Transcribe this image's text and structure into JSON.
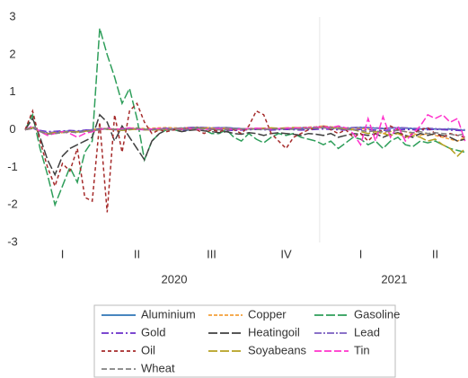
{
  "chart_data": {
    "type": "line",
    "categories": [
      null,
      null,
      null,
      null,
      null,
      "I",
      null,
      null,
      null,
      null,
      null,
      null,
      null,
      null,
      null,
      "II",
      null,
      null,
      null,
      null,
      null,
      null,
      null,
      null,
      null,
      "III",
      null,
      null,
      null,
      null,
      null,
      null,
      null,
      null,
      null,
      "IV",
      null,
      null,
      null,
      null,
      null,
      null,
      null,
      null,
      null,
      "I",
      null,
      null,
      null,
      null,
      null,
      null,
      null,
      null,
      null,
      "II",
      null,
      null,
      null,
      null
    ],
    "groups": [
      "2020",
      "2021"
    ],
    "ylim": [
      -3,
      3
    ],
    "yticks": [
      -3,
      -2,
      -1,
      0,
      1,
      2,
      3
    ],
    "series": [
      {
        "name": "Aluminium",
        "color": "#2e75b6",
        "dash": "none",
        "values": [
          0,
          0.05,
          -0.05,
          -0.1,
          -0.08,
          -0.05,
          -0.03,
          -0.05,
          -0.02,
          0,
          0.03,
          0.02,
          0,
          0.02,
          0.03,
          0.02,
          0,
          0.01,
          0.02,
          0.03,
          0.02,
          0.04,
          0.05,
          0.06,
          0.05,
          0.04,
          0.05,
          0.06,
          0.04,
          0.03,
          0.02,
          0.03,
          0.02,
          0.01,
          0.02,
          0.03,
          0.02,
          0.03,
          0.04,
          0.05,
          0.06,
          0.05,
          0.04,
          0.03,
          0.05,
          0.06,
          0.05,
          0.04,
          0.03,
          0.04,
          0.05,
          0.04,
          0.03,
          0.02,
          0.03,
          0.02,
          0.01,
          0.02,
          0,
          -0.02
        ]
      },
      {
        "name": "Copper",
        "color": "#f4a13a",
        "dash": "4,2",
        "values": [
          0,
          0.06,
          -0.04,
          -0.12,
          -0.1,
          -0.08,
          -0.05,
          -0.06,
          -0.03,
          0,
          0.04,
          0.03,
          0.02,
          0.03,
          0.04,
          0.05,
          0.03,
          0.04,
          0.05,
          0.06,
          0.05,
          0.04,
          0.06,
          0.07,
          0.06,
          0.05,
          0.04,
          0.05,
          0.03,
          0.02,
          0.03,
          0.04,
          0.03,
          0.02,
          0.03,
          0.04,
          0.05,
          0.06,
          0.07,
          0.08,
          0.1,
          0.08,
          0.06,
          0.05,
          0.04,
          0.03,
          0.02,
          -0.05,
          -0.1,
          -0.05,
          0,
          -0.05,
          -0.1,
          -0.15,
          -0.1,
          -0.15,
          -0.2,
          -0.25,
          -0.3,
          -0.2
        ]
      },
      {
        "name": "Gasoline",
        "color": "#2e9e5a",
        "dash": "10,3",
        "values": [
          0,
          0.4,
          -0.5,
          -1.2,
          -2.0,
          -1.5,
          -1.0,
          -1.4,
          -0.6,
          -0.3,
          2.7,
          2.0,
          1.4,
          0.7,
          1.1,
          0.3,
          -0.8,
          -0.3,
          -0.1,
          0,
          0,
          -0.05,
          0,
          0.05,
          0,
          -0.1,
          -0.1,
          0,
          -0.2,
          -0.3,
          -0.1,
          -0.25,
          -0.35,
          -0.2,
          -0.1,
          -0.15,
          -0.1,
          -0.2,
          -0.25,
          -0.3,
          -0.4,
          -0.3,
          -0.5,
          -0.35,
          -0.2,
          -0.25,
          -0.4,
          -0.3,
          -0.5,
          -0.3,
          -0.2,
          -0.4,
          -0.45,
          -0.3,
          -0.35,
          -0.3,
          -0.4,
          -0.5,
          -0.55,
          -0.6
        ]
      },
      {
        "name": "Gold",
        "color": "#6a2fc9",
        "dash": "8,3,2,3",
        "values": [
          0,
          0.03,
          -0.02,
          -0.05,
          -0.04,
          -0.03,
          -0.02,
          -0.03,
          -0.01,
          0,
          0.02,
          0.01,
          0,
          0.01,
          0.02,
          0.01,
          0,
          -0.01,
          0,
          0.01,
          0,
          -0.01,
          0,
          0.01,
          0.02,
          0.01,
          0,
          -0.01,
          -0.02,
          -0.01,
          0,
          0.01,
          0,
          -0.01,
          0,
          0.01,
          0,
          -0.01,
          0,
          0.01,
          0.02,
          0.01,
          0,
          -0.01,
          0,
          0.01,
          0,
          -0.01,
          -0.02,
          -0.01,
          0,
          0.01,
          0,
          -0.01,
          0,
          0.01,
          0,
          -0.01,
          -0.02,
          -0.03
        ]
      },
      {
        "name": "Heatingoil",
        "color": "#404040",
        "dash": "10,3",
        "values": [
          0,
          0.3,
          -0.2,
          -0.8,
          -1.2,
          -0.7,
          -0.5,
          -0.4,
          -0.3,
          -0.2,
          0.4,
          0.2,
          -0.3,
          0.1,
          -0.2,
          -0.5,
          -0.8,
          -0.3,
          -0.1,
          0,
          0,
          -0.05,
          -0.02,
          0,
          -0.03,
          -0.05,
          -0.08,
          -0.05,
          -0.1,
          -0.12,
          -0.08,
          -0.1,
          -0.15,
          -0.1,
          -0.08,
          -0.1,
          -0.12,
          -0.15,
          -0.1,
          -0.12,
          -0.15,
          -0.1,
          -0.2,
          -0.15,
          -0.1,
          -0.12,
          -0.15,
          -0.1,
          -0.2,
          -0.12,
          -0.08,
          -0.15,
          -0.2,
          -0.1,
          -0.15,
          -0.1,
          -0.15,
          -0.2,
          -0.3,
          -0.25
        ]
      },
      {
        "name": "Lead",
        "color": "#7b5fc0",
        "dash": "8,2,2,2",
        "values": [
          0,
          0.04,
          -0.03,
          -0.08,
          -0.06,
          -0.05,
          -0.04,
          -0.05,
          -0.02,
          0,
          0.03,
          0.02,
          0.01,
          0.02,
          0.03,
          0.02,
          0.01,
          0.02,
          0.03,
          0.04,
          0.03,
          0.05,
          0.06,
          0.07,
          0.06,
          0.05,
          0.06,
          0.05,
          0.04,
          0.03,
          0.02,
          0.03,
          0.02,
          0.01,
          0.02,
          0.03,
          0.04,
          0.05,
          0.06,
          0.07,
          0.08,
          0.07,
          0.06,
          0.05,
          0.06,
          0.07,
          0.06,
          0.05,
          0.04,
          0.05,
          0.06,
          0.05,
          0.04,
          0.03,
          0.04,
          0.03,
          0.02,
          0.03,
          0.01,
          0
        ]
      },
      {
        "name": "Oil",
        "color": "#a52a2a",
        "dash": "4,3",
        "values": [
          0,
          0.5,
          -0.3,
          -1.0,
          -1.5,
          -0.9,
          -1.1,
          -0.5,
          -1.8,
          -1.9,
          0.2,
          -2.2,
          0.4,
          -0.6,
          0.5,
          0.7,
          0.2,
          -0.1,
          0,
          -0.05,
          0,
          0,
          0.05,
          0,
          -0.1,
          0,
          -0.05,
          0,
          0,
          -0.1,
          0.1,
          0.5,
          0.4,
          -0.1,
          -0.3,
          -0.5,
          -0.2,
          -0.1,
          0,
          0.05,
          0.1,
          0,
          -0.1,
          0,
          -0.2,
          -0.1,
          -0.3,
          -0.1,
          0,
          0.1,
          0,
          -0.2,
          -0.1,
          0,
          0.05,
          -0.1,
          -0.2,
          -0.1,
          -0.15,
          -0.2
        ]
      },
      {
        "name": "Soyabeans",
        "color": "#b5a020",
        "dash": "10,3",
        "values": [
          0,
          0.05,
          -0.05,
          -0.1,
          -0.08,
          -0.06,
          -0.05,
          -0.06,
          -0.04,
          -0.02,
          0,
          0.02,
          0,
          -0.02,
          0,
          0.02,
          0,
          -0.01,
          0,
          0.01,
          0.02,
          0.03,
          0.02,
          0.03,
          0.04,
          0.03,
          0.02,
          0.03,
          0.02,
          0.01,
          0.02,
          0.03,
          0.04,
          0.05,
          0.04,
          0.05,
          0.06,
          0.05,
          0.04,
          0.05,
          0.06,
          0.05,
          0.04,
          0.02,
          0,
          -0.05,
          -0.1,
          -0.05,
          -0.1,
          -0.15,
          -0.1,
          -0.2,
          -0.15,
          -0.2,
          -0.3,
          -0.25,
          -0.4,
          -0.5,
          -0.7,
          -0.5
        ]
      },
      {
        "name": "Tin",
        "color": "#ff33cc",
        "dash": "8,3",
        "values": [
          0,
          0.1,
          -0.05,
          -0.15,
          -0.1,
          -0.05,
          -0.1,
          -0.2,
          -0.1,
          -0.05,
          0,
          0.05,
          0,
          0.03,
          0.05,
          0.02,
          0,
          0.02,
          0.03,
          0.02,
          0.01,
          0.02,
          0.03,
          0.02,
          0.01,
          0.02,
          0.03,
          0.02,
          0.01,
          0.02,
          0.03,
          0.04,
          0.03,
          0.02,
          0.03,
          0.04,
          0.05,
          0.04,
          0.05,
          0.06,
          0.08,
          0.05,
          0.1,
          0.05,
          -0.1,
          -0.4,
          0.3,
          -0.3,
          0.35,
          -0.2,
          0.1,
          -0.3,
          -0.1,
          0.1,
          0.4,
          0.3,
          0.4,
          0.2,
          0.3,
          -0.3
        ]
      },
      {
        "name": "Wheat",
        "color": "#808080",
        "dash": "6,3",
        "values": [
          0,
          0.08,
          -0.05,
          -0.12,
          -0.1,
          -0.08,
          -0.06,
          -0.08,
          -0.05,
          -0.03,
          0,
          0.03,
          0.01,
          0,
          0.02,
          0.04,
          0.02,
          0,
          0.01,
          0.02,
          0.01,
          0,
          0.02,
          0.03,
          0.02,
          0.01,
          0,
          0.01,
          0.02,
          0.03,
          0.02,
          0.01,
          0,
          0.02,
          0.03,
          0.02,
          0.01,
          0.02,
          0.03,
          0.04,
          0.05,
          0.03,
          0.02,
          0.01,
          0,
          -0.02,
          -0.05,
          -0.03,
          -0.06,
          -0.04,
          -0.02,
          -0.05,
          -0.08,
          -0.05,
          -0.1,
          -0.08,
          -0.1,
          -0.12,
          -0.15,
          -0.1
        ]
      }
    ]
  }
}
